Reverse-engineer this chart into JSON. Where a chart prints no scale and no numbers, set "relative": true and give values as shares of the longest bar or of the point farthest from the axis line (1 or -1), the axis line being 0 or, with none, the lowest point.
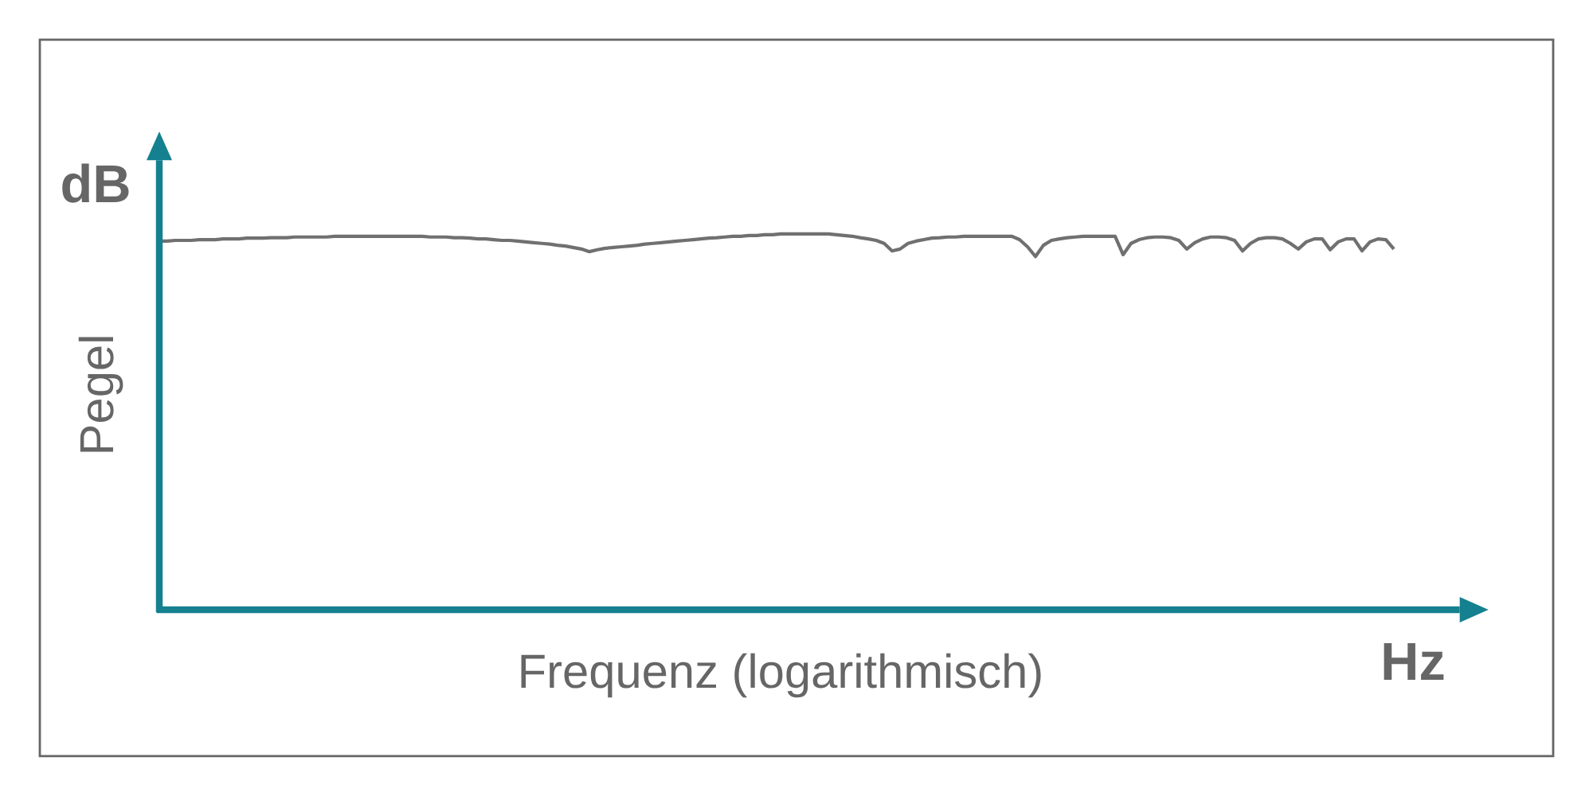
{
  "chart_data": {
    "type": "line",
    "relative": true,
    "xlabel": "Frequenz (logarithmisch)",
    "ylabel": "Pegel",
    "annotations": [
      "dB",
      "Hz"
    ],
    "categories": [
      null,
      null,
      null,
      null,
      null,
      null,
      null,
      null,
      null,
      null,
      null,
      null,
      null,
      null,
      null,
      null,
      null,
      null,
      null,
      null,
      null,
      null,
      null,
      null,
      null,
      null,
      null,
      null,
      null,
      null,
      null,
      null,
      null,
      null,
      null,
      null,
      null,
      null,
      null,
      null,
      null,
      null,
      null,
      null,
      null,
      null,
      null,
      null,
      null,
      null,
      null,
      null,
      null,
      null,
      null,
      null,
      null,
      null,
      null,
      null,
      null,
      null,
      null,
      null,
      null,
      null,
      null,
      null,
      null,
      null,
      null,
      null,
      null,
      null,
      null,
      null,
      null,
      null,
      null,
      null,
      null,
      null,
      null,
      null,
      null,
      null,
      null,
      null,
      null,
      null,
      null,
      null,
      null,
      null,
      null,
      null,
      null,
      null,
      null,
      null,
      null,
      null,
      null,
      null,
      null,
      null,
      null,
      null,
      null,
      null,
      null,
      null,
      null,
      null,
      null,
      null,
      null,
      null,
      null,
      null,
      null,
      null,
      null,
      null,
      null,
      null,
      null,
      null,
      null,
      null,
      null,
      null,
      null,
      null,
      null,
      null,
      null,
      null,
      null,
      null,
      null,
      null,
      null,
      null,
      null,
      null,
      null,
      null,
      null,
      null,
      null,
      null,
      null,
      null,
      null,
      null
    ],
    "series": [
      {
        "color": "#707070",
        "values": [
          0.981,
          0.981,
          0.983,
          0.983,
          0.983,
          0.985,
          0.985,
          0.985,
          0.987,
          0.987,
          0.987,
          0.989,
          0.989,
          0.989,
          0.99,
          0.99,
          0.99,
          0.992,
          0.992,
          0.992,
          0.992,
          0.992,
          0.994,
          0.994,
          0.994,
          0.994,
          0.994,
          0.994,
          0.994,
          0.994,
          0.994,
          0.994,
          0.994,
          0.994,
          0.992,
          0.992,
          0.992,
          0.99,
          0.99,
          0.989,
          0.987,
          0.987,
          0.985,
          0.983,
          0.983,
          0.981,
          0.979,
          0.977,
          0.975,
          0.973,
          0.97,
          0.968,
          0.964,
          0.96,
          0.953,
          0.958,
          0.962,
          0.964,
          0.966,
          0.968,
          0.97,
          0.973,
          0.975,
          0.977,
          0.979,
          0.981,
          0.983,
          0.985,
          0.987,
          0.989,
          0.99,
          0.992,
          0.994,
          0.994,
          0.996,
          0.996,
          0.998,
          0.998,
          1,
          1,
          1,
          1,
          1,
          1,
          1,
          0.998,
          0.996,
          0.994,
          0.99,
          0.987,
          0.983,
          0.975,
          0.955,
          0.96,
          0.975,
          0.981,
          0.985,
          0.989,
          0.99,
          0.992,
          0.992,
          0.994,
          0.994,
          0.994,
          0.994,
          0.994,
          0.994,
          0.994,
          0.985,
          0.966,
          0.94,
          0.97,
          0.983,
          0.987,
          0.99,
          0.992,
          0.994,
          0.994,
          0.994,
          0.994,
          0.994,
          0.945,
          0.975,
          0.985,
          0.99,
          0.992,
          0.992,
          0.99,
          0.983,
          0.96,
          0.977,
          0.987,
          0.992,
          0.992,
          0.99,
          0.983,
          0.955,
          0.975,
          0.987,
          0.99,
          0.99,
          0.987,
          0.975,
          0.96,
          0.979,
          0.987,
          0.987,
          0.958,
          0.979,
          0.987,
          0.987,
          0.955,
          0.979,
          0.987,
          0.985,
          0.96
        ]
      }
    ]
  }
}
